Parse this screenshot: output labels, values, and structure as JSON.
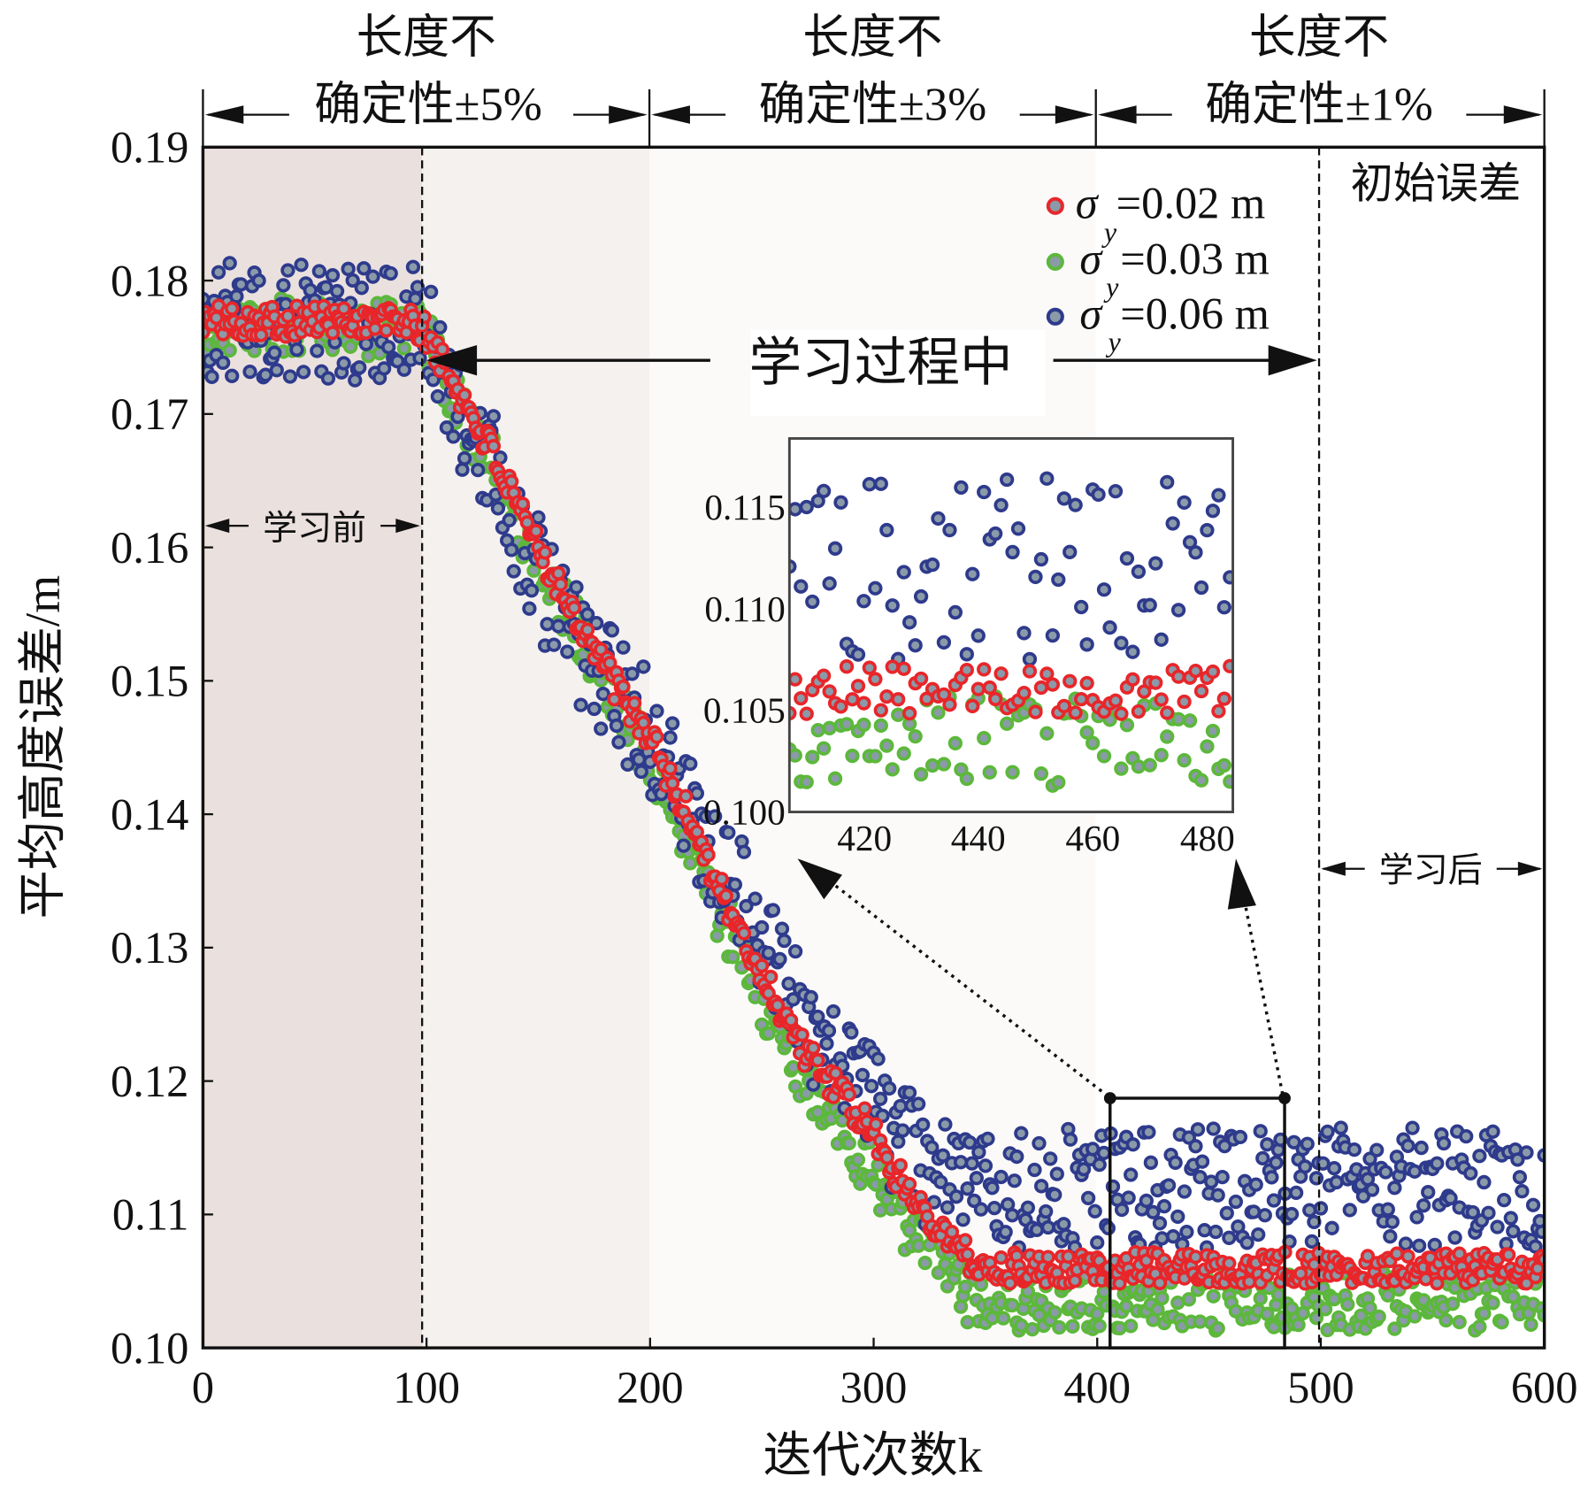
{
  "chart_data": {
    "type": "scatter",
    "xlabel": "迭代次数k",
    "ylabel": "平均高度误差/m",
    "xlim": [
      0,
      600
    ],
    "ylim": [
      0.1,
      0.19
    ],
    "xticks": [
      "0",
      "100",
      "200",
      "300",
      "400",
      "500",
      "600"
    ],
    "yticks": [
      "0.10",
      "0.11",
      "0.12",
      "0.13",
      "0.14",
      "0.15",
      "0.16",
      "0.17",
      "0.18",
      "0.19"
    ],
    "grid": false,
    "legend_position": "top-right",
    "x_sample_step": 10,
    "series": [
      {
        "name": "σy=0.02 m",
        "symbol": "σ",
        "sub": "y",
        "value_label": "=0.02 m",
        "color": "#e8262a",
        "spread": 0.0012,
        "mean": [
          0.177,
          0.177,
          0.177,
          0.177,
          0.177,
          0.177,
          0.177,
          0.177,
          0.177,
          0.177,
          0.176,
          0.173,
          0.17,
          0.167,
          0.163,
          0.16,
          0.157,
          0.154,
          0.151,
          0.148,
          0.146,
          0.142,
          0.139,
          0.135,
          0.131,
          0.128,
          0.125,
          0.122,
          0.12,
          0.118,
          0.116,
          0.113,
          0.111,
          0.109,
          0.107,
          0.106,
          0.106,
          0.106,
          0.106,
          0.106,
          0.106,
          0.106,
          0.106,
          0.106,
          0.106,
          0.106,
          0.106,
          0.106,
          0.106,
          0.106,
          0.106,
          0.106,
          0.106,
          0.106,
          0.106,
          0.106,
          0.106,
          0.106,
          0.106,
          0.106,
          0.106
        ]
      },
      {
        "name": "σy=0.03 m",
        "symbol": "σ",
        "sub": "y",
        "value_label": "=0.03 m",
        "color": "#5cb83a",
        "spread": 0.0022,
        "mean": [
          0.1765,
          0.1765,
          0.1765,
          0.1765,
          0.1765,
          0.1765,
          0.1765,
          0.1765,
          0.1765,
          0.1765,
          0.1755,
          0.172,
          0.169,
          0.166,
          0.162,
          0.159,
          0.156,
          0.153,
          0.15,
          0.147,
          0.144,
          0.141,
          0.137,
          0.133,
          0.13,
          0.126,
          0.123,
          0.12,
          0.117,
          0.115,
          0.113,
          0.11,
          0.108,
          0.106,
          0.104,
          0.1035,
          0.1035,
          0.1035,
          0.1035,
          0.1035,
          0.1035,
          0.1035,
          0.1035,
          0.1035,
          0.1035,
          0.1035,
          0.1035,
          0.1035,
          0.1035,
          0.1035,
          0.1035,
          0.1035,
          0.1035,
          0.1035,
          0.1035,
          0.1035,
          0.1035,
          0.1035,
          0.1035,
          0.1035,
          0.1035
        ]
      },
      {
        "name": "σy=0.06 m",
        "symbol": "σ",
        "sub": "y",
        "value_label": "=0.06 m",
        "color": "#2e3a8c",
        "spread": 0.0045,
        "mean": [
          0.177,
          0.177,
          0.177,
          0.177,
          0.177,
          0.177,
          0.177,
          0.177,
          0.177,
          0.177,
          0.176,
          0.172,
          0.169,
          0.166,
          0.161,
          0.158,
          0.155,
          0.152,
          0.15,
          0.148,
          0.146,
          0.143,
          0.14,
          0.137,
          0.134,
          0.131,
          0.128,
          0.125,
          0.122,
          0.12,
          0.118,
          0.116,
          0.114,
          0.113,
          0.112,
          0.112,
          0.112,
          0.112,
          0.112,
          0.112,
          0.112,
          0.112,
          0.112,
          0.112,
          0.112,
          0.112,
          0.112,
          0.112,
          0.112,
          0.112,
          0.112,
          0.112,
          0.112,
          0.112,
          0.112,
          0.112,
          0.112,
          0.112,
          0.112,
          0.112,
          0.112
        ]
      }
    ],
    "phases": [
      {
        "line1": "长度不",
        "line2": "确定性±5%",
        "range": [
          0,
          200
        ]
      },
      {
        "line1": "长度不",
        "line2": "确定性±3%",
        "range": [
          200,
          400
        ]
      },
      {
        "line1": "长度不",
        "line2": "确定性±1%",
        "range": [
          400,
          600
        ]
      }
    ],
    "annotations": {
      "before": "学习前",
      "during": "学习过程中",
      "after": "学习后",
      "initial_error": "初始误差"
    },
    "inset": {
      "xlim": [
        407,
        484.5
      ],
      "ylim": [
        0.1,
        0.1184
      ],
      "xticks": [
        "420",
        "440",
        "460",
        "480"
      ],
      "yticks": [
        "0.100",
        "0.105",
        "0.110",
        "0.115"
      ]
    }
  }
}
